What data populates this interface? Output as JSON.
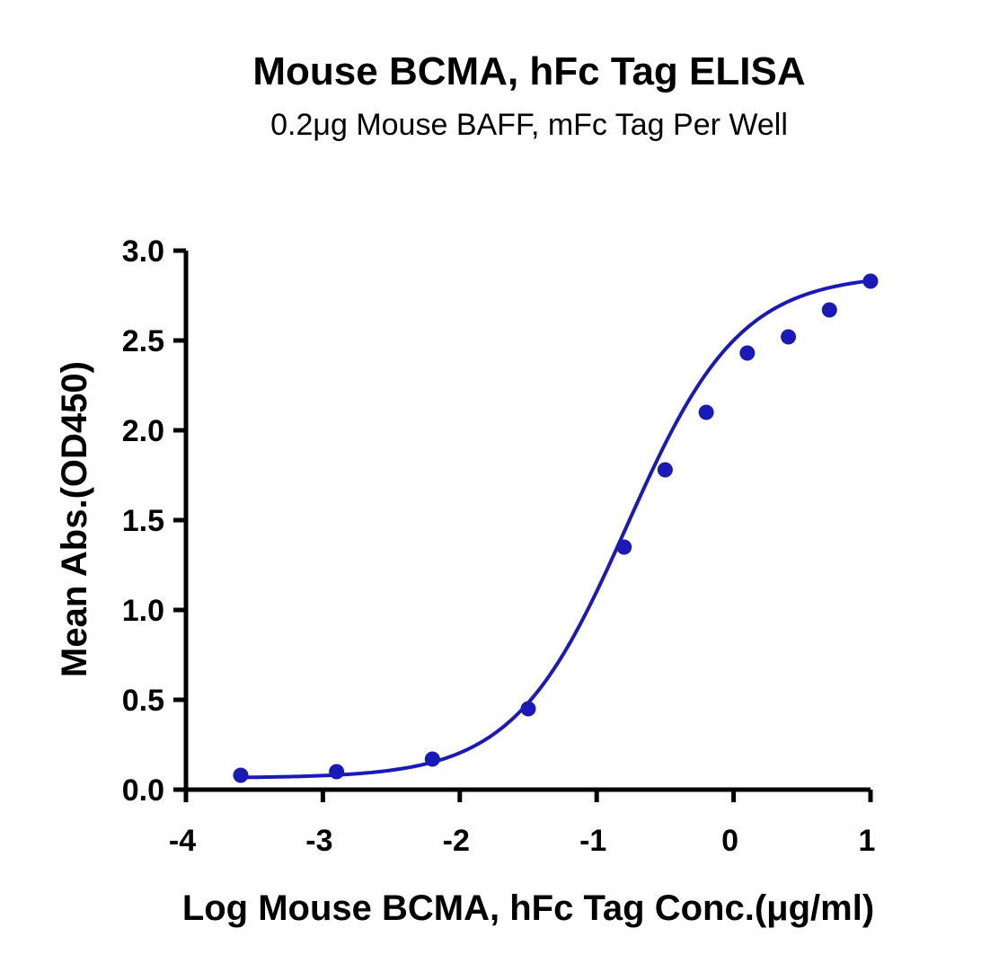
{
  "chart_data": {
    "type": "scatter",
    "title": "Mouse BCMA, hFc Tag ELISA",
    "subtitle": "0.2μg Mouse BAFF, mFc Tag Per Well",
    "xlabel": "Log Mouse BCMA, hFc Tag Conc.(μg/ml)",
    "ylabel": "Mean Abs.(OD450)",
    "xlim": [
      -4,
      1
    ],
    "ylim": [
      0,
      3
    ],
    "x_ticks": [
      "-4",
      "-3",
      "-2",
      "-1",
      "0",
      "1"
    ],
    "y_ticks": [
      "0.0",
      "0.5",
      "1.0",
      "1.5",
      "2.0",
      "2.5",
      "3.0"
    ],
    "grid": false,
    "color": "#1a1ab8",
    "series": [
      {
        "x": [
          -3.6,
          -2.9,
          -2.2,
          -1.5,
          -0.8,
          -0.5,
          -0.2,
          0.1,
          0.4,
          0.7,
          1.0
        ],
        "y": [
          0.08,
          0.1,
          0.17,
          0.45,
          1.35,
          1.78,
          2.1,
          2.43,
          2.52,
          2.67,
          2.83
        ]
      }
    ],
    "fit": {
      "type": "4PL",
      "bottom": 0.065,
      "top": 2.87,
      "log_ec50": -0.78,
      "hill": 1.05
    }
  }
}
